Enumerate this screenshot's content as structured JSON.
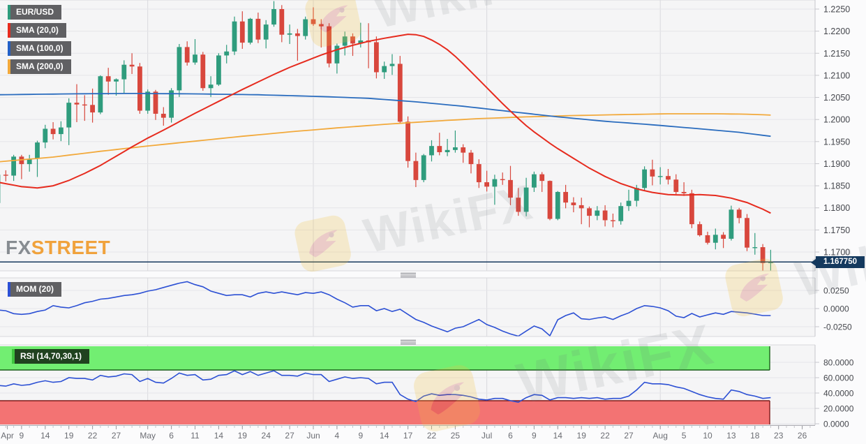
{
  "legend": {
    "instrument": "EUR/USD",
    "sma20_label": "SMA (20,0)",
    "sma100_label": "SMA (100,0)",
    "sma200_label": "SMA (200,0)",
    "mom_label": "MOM (20)",
    "rsi_label": "RSI (14,70,30,1)"
  },
  "badge": {
    "current_price": "1.167750"
  },
  "watermark": {
    "text": "WikiFX"
  },
  "logo": {
    "part1": "FX",
    "part2": "STREET"
  },
  "colors": {
    "pane_bg": "#f5f5f6",
    "axis_bg": "#fbfbfc",
    "grid": "#e5e5e9",
    "grid_month": "#d9d9de",
    "axis_line": "#c6c6cb",
    "axis_text": "#45474d",
    "x_text": "#6b6d73",
    "up": "#2f9c7d",
    "down": "#d8473d",
    "sma20": "#e62b1e",
    "sma100": "#2a6cbe",
    "sma200": "#f2a93b",
    "indicator_line": "#2c50d4",
    "price_line": "#16395d",
    "band_green": "#72ee72",
    "band_green_border": "#1b5e1b",
    "band_red": "#f37373",
    "band_red_border": "#7c1a1a",
    "grip": "#8f9096",
    "pane_border": "#d8d8dc"
  },
  "chart_data": {
    "type": "candlestick",
    "title": "EUR/USD daily candlestick chart with SMA(20), SMA(100), SMA(200) overlays and MOM(20), RSI(14,70,30,1) sub-panels",
    "instrument": "EUR/USD",
    "current_price": 1.16775,
    "axes": {
      "price_ticks": [
        1.225,
        1.22,
        1.215,
        1.21,
        1.205,
        1.2,
        1.195,
        1.19,
        1.185,
        1.18,
        1.175,
        1.17
      ],
      "mom_ticks": [
        0.025,
        0.0,
        -0.025
      ],
      "rsi_ticks": [
        80,
        60,
        40,
        20,
        0
      ]
    },
    "x_ticks": [
      [
        "Apr",
        1.2
      ],
      [
        "9",
        3
      ],
      [
        "14",
        6
      ],
      [
        "19",
        9
      ],
      [
        "22",
        12
      ],
      [
        "27",
        15
      ],
      [
        "May",
        19
      ],
      [
        "6",
        22
      ],
      [
        "11",
        25
      ],
      [
        "14",
        28
      ],
      [
        "19",
        31
      ],
      [
        "24",
        34
      ],
      [
        "27",
        37
      ],
      [
        "Jun",
        40
      ],
      [
        "4",
        43
      ],
      [
        "9",
        46
      ],
      [
        "14",
        49
      ],
      [
        "17",
        52
      ],
      [
        "22",
        55
      ],
      [
        "25",
        58
      ],
      [
        "Jul",
        62
      ],
      [
        "6",
        65
      ],
      [
        "9",
        68
      ],
      [
        "14",
        71
      ],
      [
        "19",
        74
      ],
      [
        "22",
        77
      ],
      [
        "27",
        80
      ],
      [
        "Aug",
        84
      ],
      [
        "5",
        87
      ],
      [
        "10",
        90
      ],
      [
        "13",
        93
      ],
      [
        "18",
        96
      ],
      [
        "23",
        99
      ],
      [
        "26",
        102
      ]
    ],
    "month_lines": [
      19,
      40,
      62,
      84
    ],
    "candles": [
      [
        "Apr 6",
        1.1811,
        1.1878,
        1.1795,
        1.1875
      ],
      [
        "Apr 7",
        1.1875,
        1.1885,
        1.186,
        1.1873
      ],
      [
        "Apr 8",
        1.1873,
        1.192,
        1.1861,
        1.1916
      ],
      [
        "Apr 9",
        1.1916,
        1.192,
        1.1865,
        1.1899
      ],
      [
        "Apr 12",
        1.1899,
        1.192,
        1.1882,
        1.1911
      ],
      [
        "Apr 13",
        1.1911,
        1.1952,
        1.187,
        1.1948
      ],
      [
        "Apr 14",
        1.1948,
        1.1988,
        1.1935,
        1.1979
      ],
      [
        "Apr 15",
        1.1979,
        1.1994,
        1.1955,
        1.1967
      ],
      [
        "Apr 16",
        1.1967,
        1.1996,
        1.1951,
        1.1982
      ],
      [
        "Apr 19",
        1.1982,
        1.2048,
        1.1942,
        1.2038
      ],
      [
        "Apr 20",
        1.2038,
        1.208,
        1.1994,
        1.2034
      ],
      [
        "Apr 21",
        1.2034,
        1.2055,
        1.1997,
        1.2033
      ],
      [
        "Apr 22",
        1.2033,
        1.207,
        1.1993,
        1.2016
      ],
      [
        "Apr 23",
        1.2016,
        1.21,
        1.2012,
        1.2098
      ],
      [
        "Apr 26",
        1.2098,
        1.2117,
        1.2056,
        1.2086
      ],
      [
        "Apr 27",
        1.2086,
        1.2093,
        1.2054,
        1.2091
      ],
      [
        "Apr 28",
        1.2091,
        1.2134,
        1.206,
        1.2124
      ],
      [
        "Apr 29",
        1.2124,
        1.215,
        1.2103,
        1.212
      ],
      [
        "Apr 30",
        1.212,
        1.2128,
        1.2013,
        1.202
      ],
      [
        "May 3",
        1.202,
        1.2068,
        1.2013,
        1.2063
      ],
      [
        "May 4",
        1.2063,
        1.2067,
        1.1999,
        1.2013
      ],
      [
        "May 5",
        1.2013,
        1.2028,
        1.1986,
        1.2004
      ],
      [
        "May 6",
        1.2004,
        1.2071,
        1.1993,
        1.2066
      ],
      [
        "May 7",
        1.2066,
        1.2171,
        1.2051,
        1.2164
      ],
      [
        "May 10",
        1.2164,
        1.2177,
        1.2122,
        1.2129
      ],
      [
        "May 11",
        1.2129,
        1.2182,
        1.2124,
        1.2147
      ],
      [
        "May 12",
        1.2147,
        1.2153,
        1.2065,
        1.2071
      ],
      [
        "May 13",
        1.2071,
        1.2098,
        1.2051,
        1.2079
      ],
      [
        "May 14",
        1.2079,
        1.215,
        1.2076,
        1.2145
      ],
      [
        "May 17",
        1.2145,
        1.2169,
        1.2127,
        1.2154
      ],
      [
        "May 18",
        1.2154,
        1.2233,
        1.2146,
        1.2222
      ],
      [
        "May 19",
        1.2222,
        1.2245,
        1.216,
        1.2174
      ],
      [
        "May 20",
        1.2174,
        1.223,
        1.217,
        1.2228
      ],
      [
        "May 21",
        1.2228,
        1.2242,
        1.2173,
        1.2181
      ],
      [
        "May 24",
        1.2181,
        1.2225,
        1.2161,
        1.2215
      ],
      [
        "May 25",
        1.2215,
        1.2268,
        1.221,
        1.225
      ],
      [
        "May 26",
        1.225,
        1.2259,
        1.2175,
        1.2192
      ],
      [
        "May 27",
        1.2192,
        1.2215,
        1.2171,
        1.2195
      ],
      [
        "May 28",
        1.2195,
        1.2205,
        1.2133,
        1.2189
      ],
      [
        "May 31",
        1.2189,
        1.2233,
        1.2181,
        1.2227
      ],
      [
        "Jun 1",
        1.2227,
        1.2254,
        1.2212,
        1.2216
      ],
      [
        "Jun 2",
        1.2216,
        1.2227,
        1.2163,
        1.2211
      ],
      [
        "Jun 3",
        1.2211,
        1.2218,
        1.2118,
        1.2127
      ],
      [
        "Jun 4",
        1.2127,
        1.2172,
        1.2104,
        1.2167
      ],
      [
        "Jun 7",
        1.2167,
        1.2199,
        1.2145,
        1.2188
      ],
      [
        "Jun 8",
        1.2188,
        1.2195,
        1.2144,
        1.2172
      ],
      [
        "Jun 9",
        1.2172,
        1.2219,
        1.2163,
        1.2179
      ],
      [
        "Jun 10",
        1.2179,
        1.2218,
        1.2116,
        1.2175
      ],
      [
        "Jun 11",
        1.2175,
        1.2188,
        1.2093,
        1.2107
      ],
      [
        "Jun 14",
        1.2107,
        1.2131,
        1.2092,
        1.2121
      ],
      [
        "Jun 15",
        1.2121,
        1.2148,
        1.2101,
        1.2126
      ],
      [
        "Jun 16",
        1.2126,
        1.2144,
        1.1992,
        1.1995
      ],
      [
        "Jun 17",
        1.1995,
        1.2007,
        1.1891,
        1.1906
      ],
      [
        "Jun 18",
        1.1906,
        1.1925,
        1.1847,
        1.1863
      ],
      [
        "Jun 21",
        1.1863,
        1.1922,
        1.1858,
        1.1919
      ],
      [
        "Jun 22",
        1.1919,
        1.1953,
        1.1905,
        1.194
      ],
      [
        "Jun 23",
        1.194,
        1.197,
        1.1919,
        1.1926
      ],
      [
        "Jun 24",
        1.1926,
        1.1956,
        1.1917,
        1.1931
      ],
      [
        "Jun 25",
        1.1931,
        1.1975,
        1.1925,
        1.1937
      ],
      [
        "Jun 28",
        1.1937,
        1.1944,
        1.1902,
        1.1925
      ],
      [
        "Jun 29",
        1.1925,
        1.1931,
        1.1878,
        1.1899
      ],
      [
        "Jun 30",
        1.1899,
        1.191,
        1.1845,
        1.1858
      ],
      [
        "Jul 1",
        1.1858,
        1.1884,
        1.1837,
        1.1848
      ],
      [
        "Jul 2",
        1.1848,
        1.1875,
        1.1807,
        1.1865
      ],
      [
        "Jul 5",
        1.1865,
        1.188,
        1.1852,
        1.1863
      ],
      [
        "Jul 6",
        1.1863,
        1.1895,
        1.1806,
        1.1823
      ],
      [
        "Jul 7",
        1.1823,
        1.1845,
        1.1782,
        1.1791
      ],
      [
        "Jul 8",
        1.1791,
        1.1868,
        1.1781,
        1.1846
      ],
      [
        "Jul 9",
        1.1846,
        1.1882,
        1.1836,
        1.1876
      ],
      [
        "Jul 12",
        1.1876,
        1.1881,
        1.1836,
        1.1861
      ],
      [
        "Jul 13",
        1.1861,
        1.1862,
        1.1772,
        1.1775
      ],
      [
        "Jul 14",
        1.1775,
        1.1838,
        1.1772,
        1.1836
      ],
      [
        "Jul 15",
        1.1836,
        1.1852,
        1.1799,
        1.1812
      ],
      [
        "Jul 16",
        1.1812,
        1.1824,
        1.179,
        1.1806
      ],
      [
        "Jul 19",
        1.1806,
        1.1823,
        1.1763,
        1.1799
      ],
      [
        "Jul 20",
        1.1799,
        1.1803,
        1.1756,
        1.1782
      ],
      [
        "Jul 21",
        1.1782,
        1.1804,
        1.1772,
        1.1794
      ],
      [
        "Jul 22",
        1.1794,
        1.1806,
        1.1758,
        1.1772
      ],
      [
        "Jul 23",
        1.1772,
        1.1787,
        1.1756,
        1.177
      ],
      [
        "Jul 26",
        1.177,
        1.1812,
        1.1762,
        1.1804
      ],
      [
        "Jul 27",
        1.1804,
        1.1841,
        1.1793,
        1.1816
      ],
      [
        "Jul 28",
        1.1816,
        1.1852,
        1.1803,
        1.1845
      ],
      [
        "Jul 29",
        1.1845,
        1.1894,
        1.1839,
        1.1887
      ],
      [
        "Jul 30",
        1.1887,
        1.1909,
        1.1851,
        1.1871
      ],
      [
        "Aug 2",
        1.1871,
        1.1892,
        1.1853,
        1.1872
      ],
      [
        "Aug 3",
        1.1872,
        1.1888,
        1.1853,
        1.1864
      ],
      [
        "Aug 4",
        1.1864,
        1.1876,
        1.1831,
        1.1836
      ],
      [
        "Aug 5",
        1.1836,
        1.1858,
        1.1827,
        1.1833
      ],
      [
        "Aug 6",
        1.1833,
        1.1841,
        1.1754,
        1.1763
      ],
      [
        "Aug 9",
        1.1763,
        1.1769,
        1.1735,
        1.1738
      ],
      [
        "Aug 10",
        1.1738,
        1.1746,
        1.1717,
        1.1721
      ],
      [
        "Aug 11",
        1.1721,
        1.1753,
        1.1706,
        1.1739
      ],
      [
        "Aug 12",
        1.1739,
        1.1745,
        1.1709,
        1.173
      ],
      [
        "Aug 13",
        1.173,
        1.1805,
        1.1726,
        1.1796
      ],
      [
        "Aug 16",
        1.1796,
        1.18,
        1.1765,
        1.1777
      ],
      [
        "Aug 17",
        1.1777,
        1.1786,
        1.1702,
        1.171
      ],
      [
        "Aug 18",
        1.171,
        1.1743,
        1.1694,
        1.1711
      ],
      [
        "Aug 19",
        1.1711,
        1.1718,
        1.1653,
        1.1675
      ],
      [
        "Aug 20",
        1.1675,
        1.1705,
        1.1655,
        1.16775
      ]
    ],
    "sma20": [
      [
        0,
        1.1858
      ],
      [
        3,
        1.1848
      ],
      [
        5,
        1.1845
      ],
      [
        7,
        1.185
      ],
      [
        9,
        1.1862
      ],
      [
        11,
        1.1878
      ],
      [
        13,
        1.1896
      ],
      [
        15,
        1.1917
      ],
      [
        17,
        1.1938
      ],
      [
        19,
        1.1958
      ],
      [
        21,
        1.1976
      ],
      [
        23,
        1.1995
      ],
      [
        25,
        1.2014
      ],
      [
        27,
        1.2032
      ],
      [
        29,
        1.205
      ],
      [
        31,
        1.2068
      ],
      [
        33,
        1.2085
      ],
      [
        35,
        1.2102
      ],
      [
        37,
        1.2118
      ],
      [
        39,
        1.2132
      ],
      [
        41,
        1.2146
      ],
      [
        43,
        1.2158
      ],
      [
        45,
        1.2168
      ],
      [
        47,
        1.2177
      ],
      [
        49,
        1.2184
      ],
      [
        51,
        1.219
      ],
      [
        52,
        1.2193
      ],
      [
        53,
        1.2192
      ],
      [
        54,
        1.2188
      ],
      [
        55,
        1.218
      ],
      [
        56,
        1.217
      ],
      [
        57,
        1.2158
      ],
      [
        58,
        1.2143
      ],
      [
        59,
        1.2126
      ],
      [
        60,
        1.2108
      ],
      [
        61,
        1.209
      ],
      [
        62,
        1.2072
      ],
      [
        63,
        1.2054
      ],
      [
        64,
        1.2036
      ],
      [
        65,
        1.2019
      ],
      [
        66,
        1.2002
      ],
      [
        67,
        1.1986
      ],
      [
        68,
        1.1972
      ],
      [
        69,
        1.1959
      ],
      [
        70,
        1.1946
      ],
      [
        71,
        1.1934
      ],
      [
        72,
        1.1923
      ],
      [
        73,
        1.1912
      ],
      [
        74,
        1.1901
      ],
      [
        75,
        1.189
      ],
      [
        77,
        1.1871
      ],
      [
        79,
        1.1855
      ],
      [
        81,
        1.1843
      ],
      [
        83,
        1.1835
      ],
      [
        85,
        1.183
      ],
      [
        87,
        1.1829
      ],
      [
        89,
        1.183
      ],
      [
        91,
        1.1828
      ],
      [
        93,
        1.1822
      ],
      [
        95,
        1.1812
      ],
      [
        97,
        1.1797
      ],
      [
        98,
        1.1788
      ]
    ],
    "sma100": [
      [
        0,
        1.2056
      ],
      [
        9,
        1.2058
      ],
      [
        17,
        1.2059
      ],
      [
        25,
        1.2058
      ],
      [
        33,
        1.2056
      ],
      [
        41,
        1.2052
      ],
      [
        47,
        1.2048
      ],
      [
        53,
        1.204
      ],
      [
        59,
        1.203
      ],
      [
        65,
        1.2018
      ],
      [
        71,
        1.2006
      ],
      [
        77,
        1.1996
      ],
      [
        83,
        1.1988
      ],
      [
        89,
        1.1979
      ],
      [
        94,
        1.1971
      ],
      [
        98,
        1.1962
      ]
    ],
    "sma200": [
      [
        0,
        1.1904
      ],
      [
        7,
        1.1915
      ],
      [
        13,
        1.1928
      ],
      [
        19,
        1.194
      ],
      [
        25,
        1.1951
      ],
      [
        31,
        1.1962
      ],
      [
        37,
        1.1972
      ],
      [
        43,
        1.1981
      ],
      [
        49,
        1.1989
      ],
      [
        55,
        1.1996
      ],
      [
        61,
        1.2002
      ],
      [
        67,
        1.2006
      ],
      [
        73,
        1.2009
      ],
      [
        79,
        1.2011
      ],
      [
        85,
        1.2013
      ],
      [
        91,
        1.2013
      ],
      [
        95,
        1.2012
      ],
      [
        98,
        1.201
      ]
    ],
    "mom": {
      "period": 20,
      "values": [
        -0.002,
        -0.003,
        -0.007,
        -0.008,
        -0.007,
        -0.004,
        -0.002,
        0.004,
        0.002,
        0.001,
        0.004,
        0.008,
        0.01,
        0.013,
        0.014,
        0.016,
        0.018,
        0.019,
        0.021,
        0.024,
        0.026,
        0.029,
        0.032,
        0.035,
        0.037,
        0.033,
        0.03,
        0.024,
        0.021,
        0.018,
        0.019,
        0.019,
        0.016,
        0.021,
        0.023,
        0.021,
        0.023,
        0.021,
        0.019,
        0.022,
        0.021,
        0.023,
        0.019,
        0.013,
        0.008,
        0.002,
        0.004,
        0.004,
        -0.003,
        0.0,
        -0.004,
        -0.001,
        -0.008,
        -0.015,
        -0.019,
        -0.024,
        -0.028,
        -0.032,
        -0.027,
        -0.025,
        -0.02,
        -0.015,
        -0.022,
        -0.026,
        -0.031,
        -0.035,
        -0.0385,
        -0.031,
        -0.024,
        -0.028,
        -0.0375,
        -0.0154,
        -0.0096,
        -0.006,
        -0.014,
        -0.015,
        -0.013,
        -0.0115,
        -0.015,
        -0.01,
        -0.006,
        0.0,
        0.004,
        0.003,
        0.001,
        -0.003,
        -0.0105,
        -0.0125,
        -0.0067,
        -0.0115,
        -0.0087,
        -0.006,
        -0.008,
        -0.004,
        -0.005,
        -0.006,
        -0.0077,
        -0.0096,
        -0.0096
      ]
    },
    "rsi": {
      "period": 14,
      "levels": [
        70,
        30
      ],
      "values": [
        50,
        49,
        52,
        50,
        51,
        54,
        56,
        54,
        55,
        60,
        59,
        59,
        57,
        63,
        61,
        62,
        65,
        64,
        55,
        59,
        54,
        53,
        59,
        66,
        63,
        64,
        57,
        58,
        63,
        64,
        69,
        64,
        68,
        63,
        66,
        69,
        63,
        63,
        62,
        66,
        64,
        64,
        55,
        58,
        61,
        59,
        60,
        59,
        52,
        54,
        54,
        38,
        32,
        29,
        36,
        39,
        37,
        38,
        38,
        37,
        35,
        32,
        31,
        33,
        33,
        30,
        28,
        34,
        38,
        37,
        31,
        34,
        34,
        33,
        34,
        33,
        34,
        32,
        33,
        33,
        36,
        44,
        54,
        52,
        52,
        51,
        48,
        46,
        42,
        38,
        35,
        33,
        32,
        44,
        42,
        38,
        36,
        33,
        34
      ]
    }
  }
}
